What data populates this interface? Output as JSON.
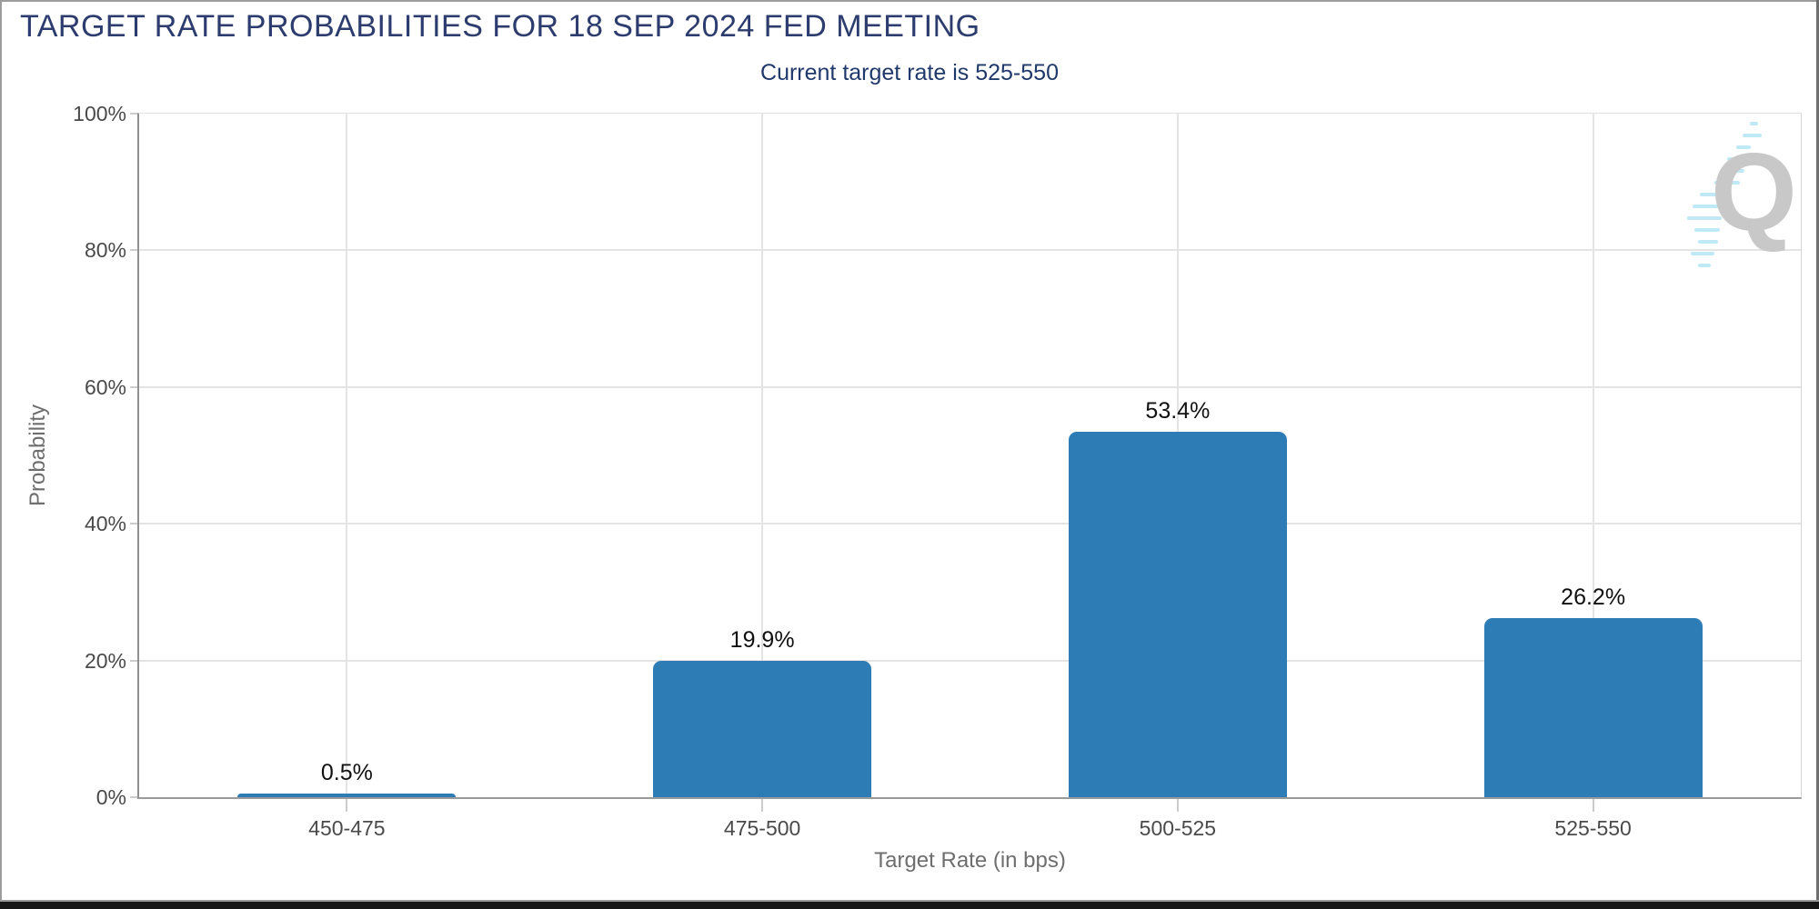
{
  "chart_data": {
    "type": "bar",
    "title": "TARGET RATE PROBABILITIES FOR 18 SEP 2024 FED MEETING",
    "subtitle": "Current target rate is 525-550",
    "categories": [
      "450-475",
      "475-500",
      "500-525",
      "525-550"
    ],
    "values": [
      0.5,
      19.9,
      53.4,
      26.2
    ],
    "value_labels": [
      "0.5%",
      "19.9%",
      "53.4%",
      "26.2%"
    ],
    "xlabel": "Target Rate (in bps)",
    "ylabel": "Probability",
    "ylim": [
      0,
      100
    ],
    "ytick_values": [
      0,
      20,
      40,
      60,
      80,
      100
    ],
    "ytick_labels": [
      "0%",
      "20%",
      "40%",
      "60%",
      "80%",
      "100%"
    ],
    "grid": true,
    "legend": false,
    "bar_color": "#2d7cb5"
  },
  "watermark": {
    "letter": "Q"
  },
  "colors": {
    "bar": "#2d7cb5",
    "title_navy": "#2c3c6e",
    "tick_label": "#4a4a4a",
    "axis_title": "#6e6e6e",
    "gridline": "#e4e4e4",
    "axis_line": "#8f8f8f",
    "value_label": "#111111",
    "logo_q": "#c8c8c8",
    "logo_dash": "#bfe9f7"
  }
}
